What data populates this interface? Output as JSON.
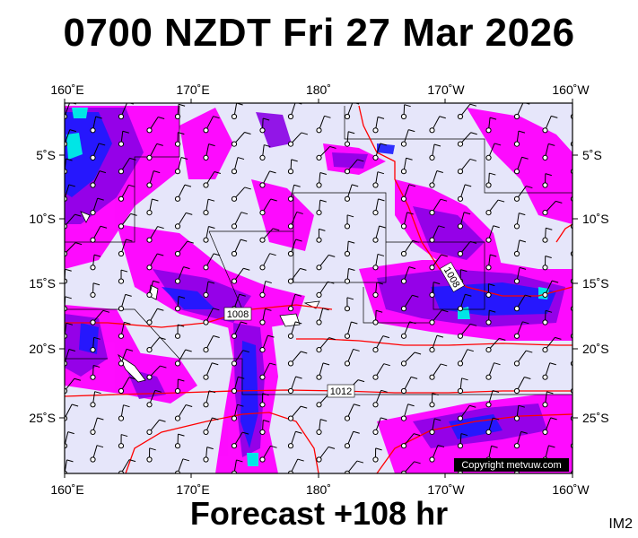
{
  "title": "0700 NZDT Fri 27 Mar 2026",
  "subtitle": "Forecast +108 hr",
  "corner_label": "IM2",
  "copyright": "Copyright metvuw.com",
  "axes": {
    "top_lon": [
      "160˚E",
      "170˚E",
      "180˚",
      "170˚W",
      "160˚W"
    ],
    "bottom_lon": [
      "160˚E",
      "170˚E",
      "180˚",
      "170˚W",
      "160˚W"
    ],
    "left_lat": [
      "5˚S",
      "10˚S",
      "15˚S",
      "20˚S",
      "25˚S"
    ],
    "right_lat": [
      "5˚S",
      "10˚S",
      "15˚S",
      "20˚S",
      "25˚S"
    ]
  },
  "isobar_labels": [
    "1008",
    "1008",
    "1012"
  ],
  "colors": {
    "background": "#e6e6fa",
    "rain_light": "#ff00ff",
    "rain_medium": "#8a00e6",
    "rain_heavy": "#1a1aff",
    "rain_extreme": "#00e6e6",
    "isobar": "#ff0000"
  }
}
